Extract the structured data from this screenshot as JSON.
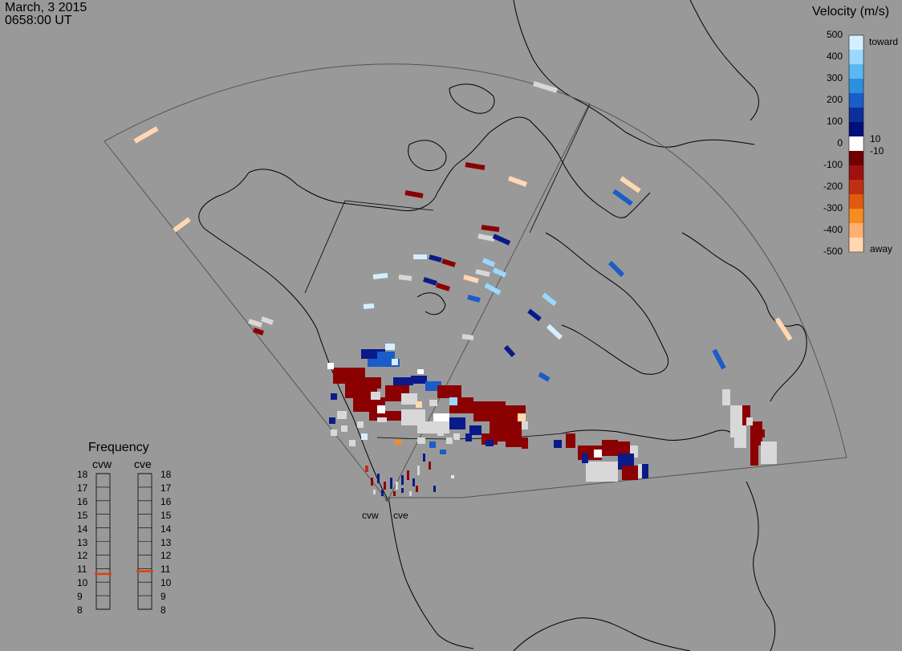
{
  "header": {
    "date": "March, 3 2015",
    "time": "0658:00 UT"
  },
  "velocity_legend": {
    "title": "Velocity (m/s)",
    "ticks": [
      "500",
      "400",
      "300",
      "200",
      "100",
      "0",
      "-100",
      "-200",
      "-300",
      "-400",
      "-500"
    ],
    "toward_label": "toward",
    "away_label": "away",
    "near_zero_pos": "10",
    "near_zero_neg": "-10",
    "colors": [
      "#d4f0ff",
      "#9ad8ff",
      "#5cb8f4",
      "#2d8fe0",
      "#1a5cc8",
      "#0d2f9a",
      "#00107a",
      "#ffffff",
      "#6e0000",
      "#a01010",
      "#c03010",
      "#e05a10",
      "#f88c20",
      "#ffb070",
      "#ffd8b0"
    ]
  },
  "frequency_legend": {
    "title": "Frequency",
    "radars": [
      "cvw",
      "cve"
    ],
    "ticks": [
      "18",
      "17",
      "16",
      "15",
      "14",
      "13",
      "12",
      "11",
      "10",
      "9",
      "8"
    ],
    "values_mhz": {
      "cvw": 10.6,
      "cve": 10.8
    },
    "marker_color": "#e04010"
  },
  "radar_sites": [
    {
      "name": "cvw"
    },
    {
      "name": "cve"
    }
  ]
}
